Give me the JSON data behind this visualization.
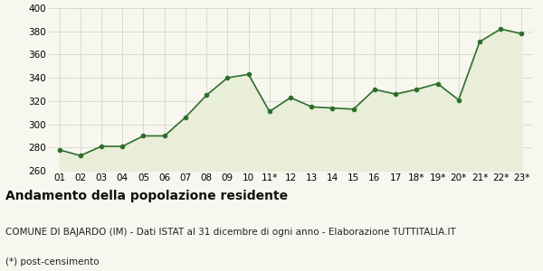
{
  "x_labels": [
    "01",
    "02",
    "03",
    "04",
    "05",
    "06",
    "07",
    "08",
    "09",
    "10",
    "11*",
    "12",
    "13",
    "14",
    "15",
    "16",
    "17",
    "18*",
    "19*",
    "20*",
    "21*",
    "22*",
    "23*"
  ],
  "y_values": [
    278,
    273,
    281,
    281,
    290,
    290,
    306,
    325,
    340,
    343,
    311,
    323,
    315,
    314,
    313,
    330,
    326,
    330,
    335,
    321,
    371,
    382,
    378
  ],
  "y_min": 260,
  "y_max": 400,
  "y_ticks": [
    260,
    280,
    300,
    320,
    340,
    360,
    380,
    400
  ],
  "line_color": "#2d6e2d",
  "fill_color": "#e8eed8",
  "marker_color": "#2d6e2d",
  "background_color": "#f7f7ef",
  "plot_bg_color": "#f7f7ef",
  "grid_color": "#d0d0be",
  "title": "Andamento della popolazione residente",
  "subtitle": "COMUNE DI BAJARDO (IM) - Dati ISTAT al 31 dicembre di ogni anno - Elaborazione TUTTITALIA.IT",
  "footnote": "(*) post-censimento",
  "title_fontsize": 10,
  "subtitle_fontsize": 7.5,
  "footnote_fontsize": 7.5,
  "tick_fontsize": 7.5
}
